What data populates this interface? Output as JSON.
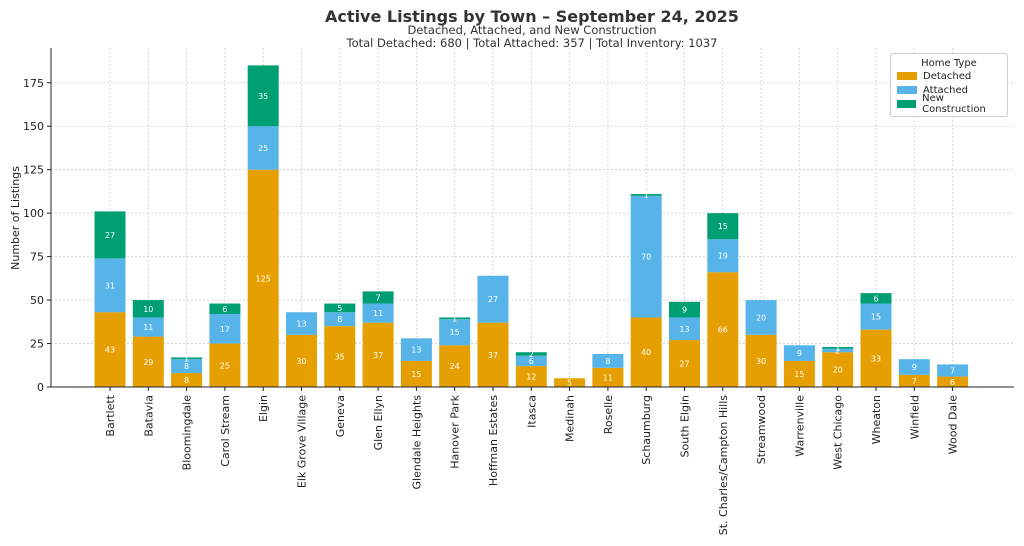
{
  "chart_data": {
    "type": "bar",
    "stacked": true,
    "title": "Active Listings by Town – September 24, 2025",
    "subtitle": "Detached, Attached, and New Construction",
    "totals_line": "Total Detached: 680 | Total Attached: 357 | Total Inventory: 1037",
    "xlabel": "",
    "ylabel": "Number of Listings",
    "ylim": [
      0,
      195
    ],
    "yticks": [
      0,
      25,
      50,
      75,
      100,
      125,
      150,
      175
    ],
    "grid": true,
    "legend_title": "Home Type",
    "legend_position": "top-right",
    "categories": [
      "Bartlett",
      "Batavia",
      "Bloomingdale",
      "Carol Stream",
      "Elgin",
      "Elk Grove Village",
      "Geneva",
      "Glen Ellyn",
      "Glendale Heights",
      "Hanover Park",
      "Hoffman Estates",
      "Itasca",
      "Medinah",
      "Roselle",
      "Schaumburg",
      "South Elgin",
      "St. Charles/Campton Hills",
      "Streamwood",
      "Warrenville",
      "West Chicago",
      "Wheaton",
      "Winfield",
      "Wood Dale"
    ],
    "series": [
      {
        "name": "Detached",
        "color": "#E69F00",
        "values": [
          43,
          29,
          8,
          25,
          125,
          30,
          35,
          37,
          15,
          24,
          37,
          12,
          5,
          11,
          40,
          27,
          66,
          30,
          15,
          20,
          33,
          7,
          6
        ]
      },
      {
        "name": "Attached",
        "color": "#56B4E9",
        "values": [
          31,
          11,
          8,
          17,
          25,
          13,
          8,
          11,
          13,
          15,
          27,
          6,
          0,
          8,
          70,
          13,
          19,
          20,
          9,
          2,
          15,
          9,
          7
        ]
      },
      {
        "name": "New Construction",
        "color": "#009E73",
        "values": [
          27,
          10,
          1,
          6,
          35,
          0,
          5,
          7,
          0,
          1,
          0,
          2,
          0,
          0,
          1,
          9,
          15,
          0,
          0,
          1,
          6,
          0,
          0
        ]
      }
    ]
  }
}
